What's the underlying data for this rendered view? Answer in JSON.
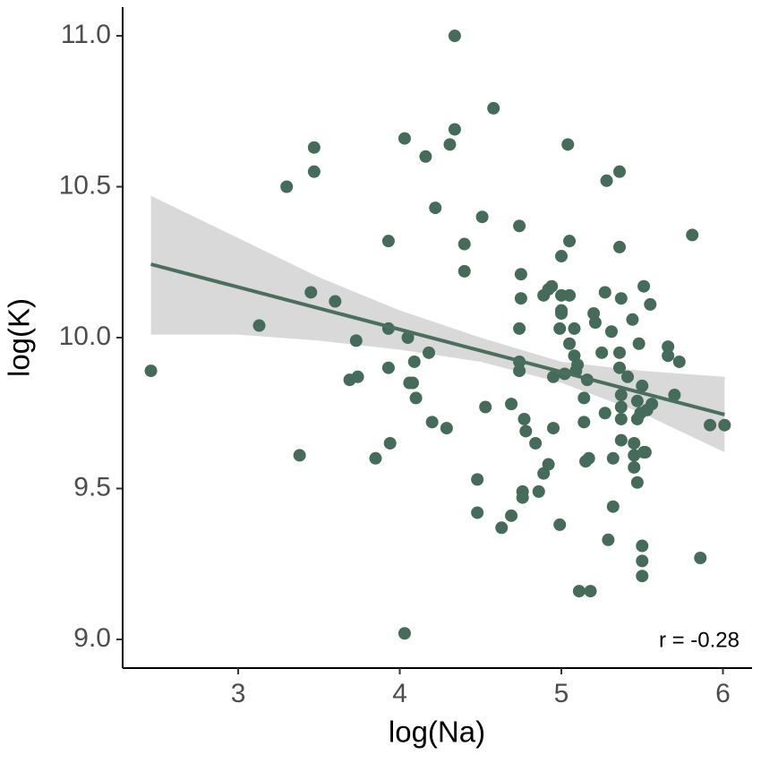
{
  "chart_data": {
    "type": "scatter",
    "x_label": "log(Na)",
    "y_label": "log(K)",
    "annotation": "r = -0.28",
    "color": "#456b5b",
    "line_color": "#4a6f5e",
    "band_color": "#d9d9d9",
    "xlim": [
      2.285,
      6.18
    ],
    "ylim": [
      8.905,
      11.095
    ],
    "xticks": [
      3,
      4,
      5,
      6
    ],
    "yticks": [
      {
        "value": 9,
        "label": "9.0"
      },
      9.5,
      {
        "value": 10,
        "label": "10.0"
      },
      10.5,
      {
        "value": 11,
        "label": "11.0"
      }
    ],
    "x": [
      2.46,
      3.13,
      3.38,
      3.3,
      3.45,
      3.47,
      3.47,
      3.6,
      3.73,
      3.69,
      3.74,
      3.85,
      3.93,
      3.93,
      3.93,
      3.94,
      4.03,
      4.05,
      4.03,
      4.06,
      4.08,
      4.09,
      4.1,
      4.18,
      4.16,
      4.2,
      4.22,
      4.29,
      4.34,
      4.31,
      4.34,
      4.4,
      4.4,
      4.51,
      4.53,
      4.48,
      4.48,
      4.58,
      4.63,
      4.69,
      4.69,
      4.74,
      4.74,
      4.75,
      4.75,
      4.74,
      4.74,
      4.76,
      4.76,
      4.77,
      4.78,
      4.84,
      4.86,
      4.89,
      4.92,
      4.89,
      4.92,
      4.94,
      4.95,
      4.95,
      5.0,
      5.0,
      5.0,
      5.0,
      4.99,
      4.99,
      5.02,
      5.04,
      5.05,
      5.05,
      5.05,
      5.08,
      5.08,
      5.09,
      5.1,
      5.11,
      5.14,
      5.14,
      5.15,
      5.16,
      5.17,
      5.18,
      5.2,
      5.21,
      5.25,
      5.28,
      5.27,
      5.29,
      5.27,
      5.31,
      5.32,
      5.32,
      5.36,
      5.36,
      5.37,
      5.36,
      5.36,
      5.37,
      5.37,
      5.37,
      5.37,
      5.41,
      5.44,
      5.45,
      5.45,
      5.45,
      5.47,
      5.47,
      5.47,
      5.48,
      5.49,
      5.5,
      5.51,
      5.5,
      5.5,
      5.5,
      5.51,
      5.52,
      5.53,
      5.56,
      5.55,
      5.66,
      5.66,
      5.7,
      5.73,
      5.81,
      5.86,
      5.92,
      6.01
    ],
    "values": [
      9.89,
      10.04,
      9.61,
      10.5,
      10.15,
      10.55,
      10.63,
      10.12,
      9.99,
      9.86,
      9.87,
      9.6,
      10.32,
      10.03,
      9.9,
      9.65,
      10.66,
      10.0,
      9.02,
      9.85,
      9.85,
      9.92,
      9.8,
      9.95,
      10.6,
      9.72,
      10.43,
      9.7,
      10.69,
      10.64,
      11.0,
      10.31,
      10.22,
      10.4,
      9.77,
      9.53,
      9.42,
      10.76,
      9.37,
      9.78,
      9.41,
      10.37,
      10.03,
      10.13,
      10.21,
      9.92,
      9.89,
      9.49,
      9.47,
      9.73,
      9.69,
      9.65,
      9.49,
      9.55,
      9.58,
      10.14,
      10.16,
      10.17,
      9.87,
      9.7,
      10.27,
      10.14,
      10.09,
      10.08,
      10.03,
      9.38,
      9.88,
      10.64,
      10.32,
      10.14,
      9.98,
      10.03,
      9.94,
      9.89,
      9.91,
      9.16,
      9.8,
      9.72,
      9.59,
      9.86,
      9.6,
      9.16,
      10.08,
      10.05,
      9.95,
      10.52,
      9.75,
      9.33,
      10.15,
      10.02,
      9.6,
      9.44,
      10.55,
      10.3,
      10.13,
      9.95,
      9.9,
      9.81,
      9.77,
      9.73,
      9.66,
      9.87,
      10.06,
      9.61,
      9.57,
      9.65,
      9.52,
      9.79,
      9.73,
      9.98,
      9.75,
      9.84,
      9.62,
      9.31,
      9.26,
      9.21,
      10.17,
      9.62,
      9.76,
      9.78,
      10.11,
      9.97,
      9.94,
      9.81,
      9.92,
      10.34,
      9.27,
      9.71,
      9.71
    ],
    "fit": {
      "x": [
        2.46,
        6.01
      ],
      "values": [
        10.243,
        9.745
      ]
    },
    "band": {
      "x": [
        2.46,
        3.0,
        3.5,
        4.0,
        4.5,
        5.0,
        5.5,
        6.01
      ],
      "upper": [
        10.47,
        10.33,
        10.2,
        10.09,
        10.0,
        9.92,
        9.89,
        9.87
      ],
      "lower": [
        10.01,
        10.01,
        9.99,
        9.96,
        9.92,
        9.85,
        9.75,
        9.62
      ]
    }
  }
}
